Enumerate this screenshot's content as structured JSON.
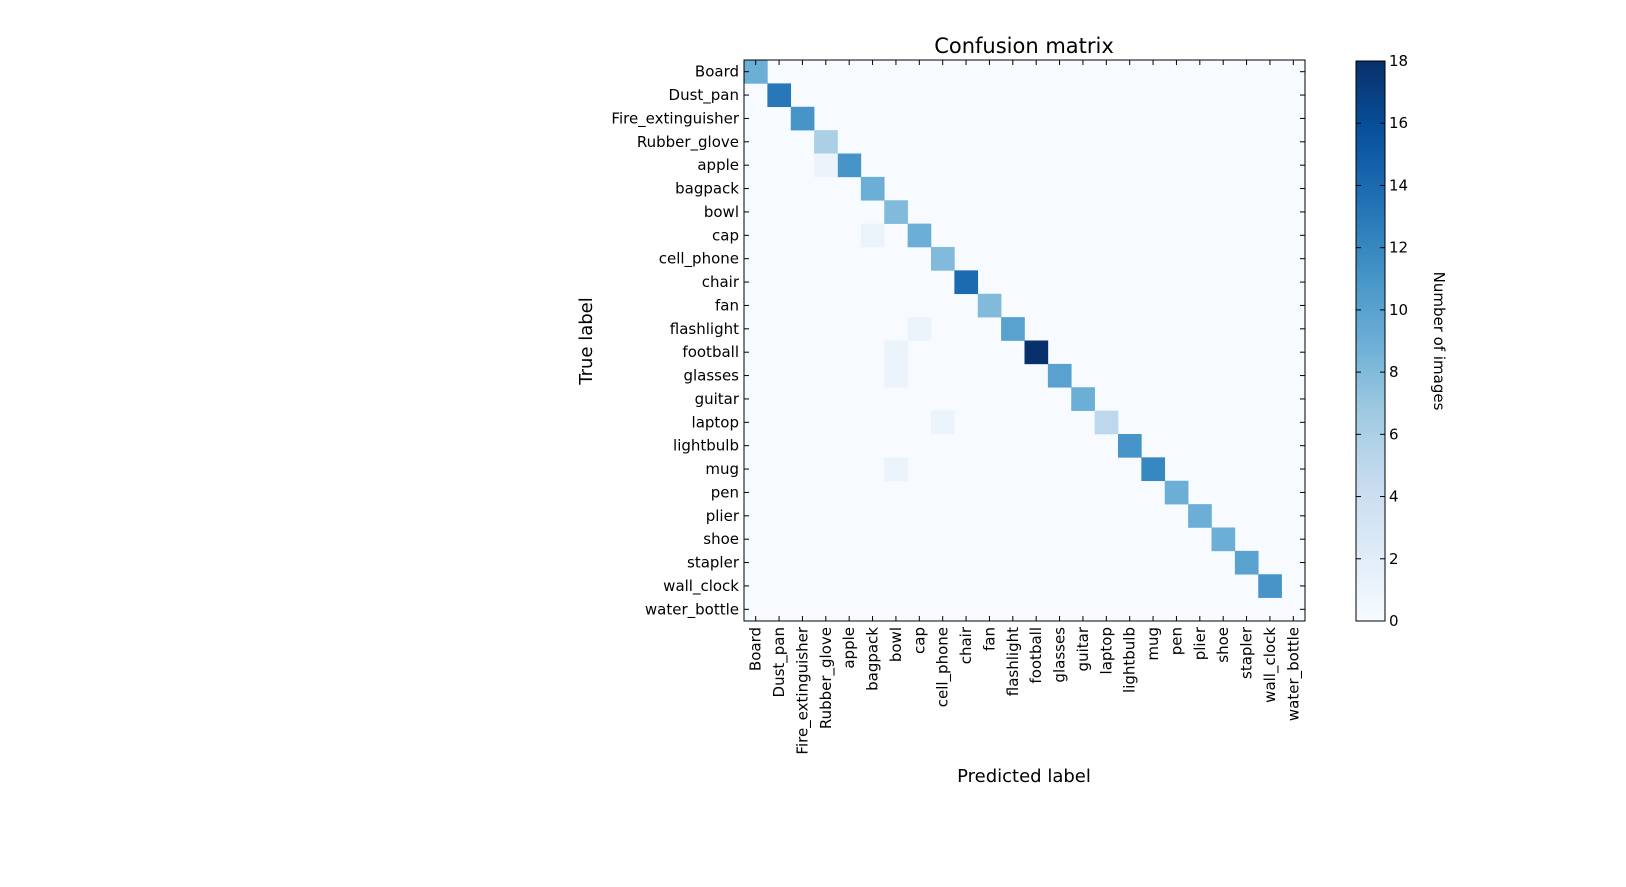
{
  "chart_data": {
    "type": "heatmap",
    "title": "Confusion matrix",
    "xlabel": "Predicted label",
    "ylabel": "True label",
    "x_categories": [
      "Board",
      "Dust_pan",
      "Fire_extinguisher",
      "Rubber_glove",
      "apple",
      "bagpack",
      "bowl",
      "cap",
      "cell_phone",
      "chair",
      "fan",
      "flashlight",
      "football",
      "glasses",
      "guitar",
      "laptop",
      "lightbulb",
      "mug",
      "pen",
      "plier",
      "shoe",
      "stapler",
      "wall_clock",
      "water_bottle"
    ],
    "y_categories": [
      "Board",
      "Dust_pan",
      "Fire_extinguisher",
      "Rubber_glove",
      "apple",
      "bagpack",
      "bowl",
      "cap",
      "cell_phone",
      "chair",
      "fan",
      "flashlight",
      "football",
      "glasses",
      "guitar",
      "laptop",
      "lightbulb",
      "mug",
      "pen",
      "plier",
      "shoe",
      "stapler",
      "wall_clock",
      "water_bottle"
    ],
    "cells": [
      [
        0,
        0,
        9
      ],
      [
        1,
        1,
        13
      ],
      [
        2,
        2,
        11
      ],
      [
        3,
        3,
        6
      ],
      [
        4,
        4,
        11
      ],
      [
        3,
        4,
        1
      ],
      [
        5,
        5,
        9
      ],
      [
        6,
        6,
        8
      ],
      [
        7,
        7,
        9
      ],
      [
        5,
        7,
        1
      ],
      [
        8,
        8,
        8
      ],
      [
        9,
        9,
        14
      ],
      [
        10,
        10,
        8
      ],
      [
        11,
        11,
        10
      ],
      [
        7,
        11,
        1
      ],
      [
        12,
        12,
        18
      ],
      [
        6,
        12,
        1
      ],
      [
        13,
        13,
        10
      ],
      [
        6,
        13,
        1
      ],
      [
        14,
        14,
        9
      ],
      [
        15,
        15,
        5
      ],
      [
        8,
        15,
        1
      ],
      [
        16,
        16,
        11
      ],
      [
        17,
        17,
        12
      ],
      [
        6,
        17,
        1
      ],
      [
        18,
        18,
        9
      ],
      [
        19,
        19,
        9
      ],
      [
        20,
        20,
        9
      ],
      [
        21,
        21,
        10
      ],
      [
        22,
        22,
        11
      ]
    ],
    "cell_format": "[predicted_index, true_index, count]",
    "colorbar": {
      "label": "Number of images",
      "range": [
        0,
        18
      ],
      "ticks": [
        "0",
        "2",
        "4",
        "6",
        "8",
        "10",
        "12",
        "14",
        "16",
        "18"
      ]
    },
    "colormap": "Blues",
    "grid": false
  }
}
